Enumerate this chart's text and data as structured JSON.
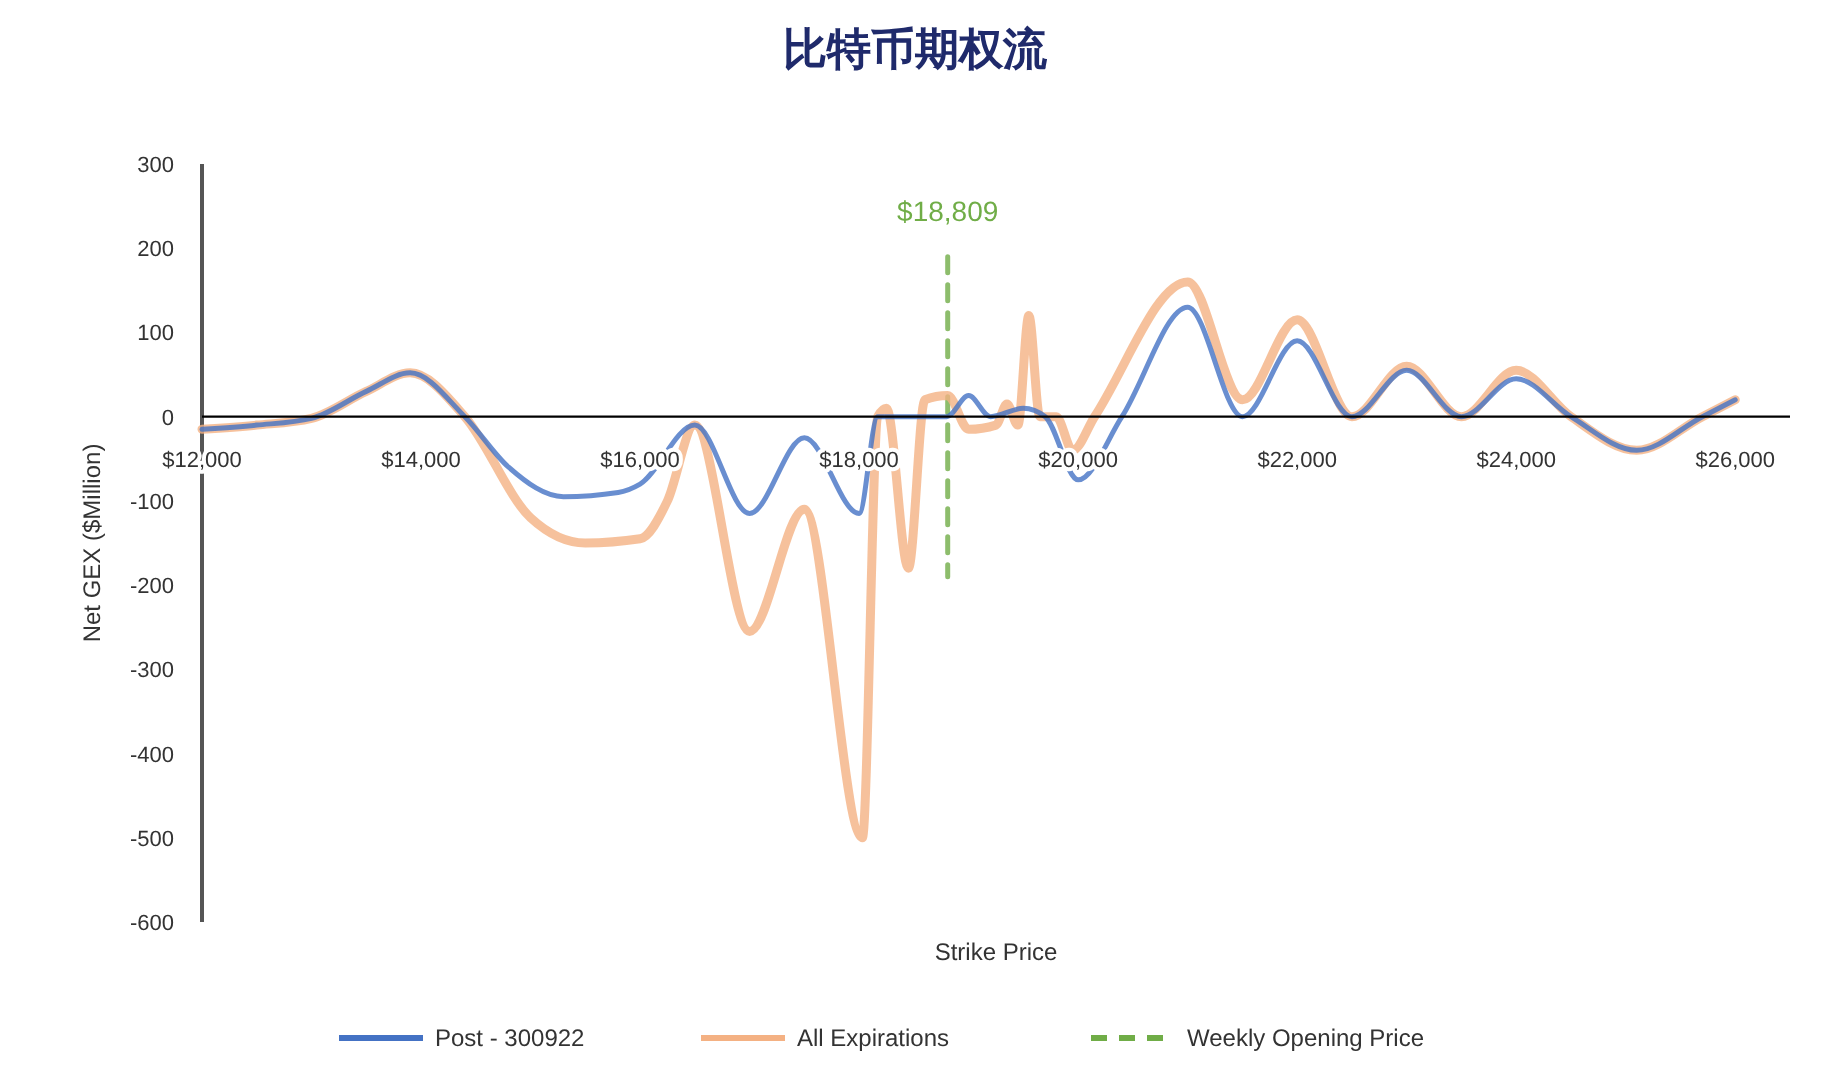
{
  "chart_data": {
    "type": "line",
    "title": "比特币期权流",
    "xlabel": "Strike Price",
    "ylabel": "Net GEX ($Million)",
    "xlim": [
      12000,
      26500
    ],
    "ylim": [
      -600,
      300
    ],
    "xticks": [
      {
        "value": 12000,
        "label": "$12,000"
      },
      {
        "value": 14000,
        "label": "$14,000"
      },
      {
        "value": 16000,
        "label": "$16,000"
      },
      {
        "value": 18000,
        "label": "$18,000"
      },
      {
        "value": 20000,
        "label": "$20,000"
      },
      {
        "value": 22000,
        "label": "$22,000"
      },
      {
        "value": 24000,
        "label": "$24,000"
      },
      {
        "value": 26000,
        "label": "$26,000"
      }
    ],
    "yticks": [
      -600,
      -500,
      -400,
      -300,
      -200,
      -100,
      0,
      100,
      200,
      300
    ],
    "grid": false,
    "legend": "bottom",
    "marker": "none",
    "annotations": [
      "$18,809"
    ],
    "series": [
      {
        "name": "Post - 300922",
        "color": "#4472c4",
        "line_style": "solid",
        "x": [
          12000,
          12500,
          13000,
          13500,
          13900,
          14400,
          14800,
          15300,
          15800,
          16000,
          16500,
          17000,
          17500,
          18000,
          18170,
          18800,
          19000,
          19200,
          19500,
          19700,
          20000,
          20400,
          21000,
          21500,
          22000,
          22500,
          23000,
          23500,
          24000,
          24500,
          25100,
          25700,
          26000
        ],
        "values": [
          -15,
          -10,
          -2,
          30,
          52,
          0,
          -60,
          -95,
          -90,
          -80,
          -10,
          -115,
          -25,
          -115,
          0,
          0,
          25,
          0,
          10,
          0,
          -75,
          0,
          130,
          0,
          90,
          0,
          55,
          0,
          45,
          0,
          -40,
          0,
          20
        ]
      },
      {
        "name": "All Expirations",
        "color": "#f4b183",
        "line_style": "solid",
        "x": [
          12000,
          12500,
          13000,
          13500,
          13900,
          14400,
          15000,
          15500,
          16000,
          16250,
          16500,
          17000,
          17500,
          18030,
          18170,
          18250,
          18450,
          18600,
          18809,
          19000,
          19250,
          19350,
          19450,
          19550,
          19650,
          19800,
          19950,
          20150,
          21000,
          21500,
          22000,
          22500,
          23000,
          23500,
          24000,
          24500,
          25100,
          25700,
          26000
        ],
        "values": [
          -15,
          -10,
          -2,
          30,
          52,
          0,
          -120,
          -150,
          -145,
          -100,
          -10,
          -255,
          -110,
          -500,
          0,
          10,
          -180,
          20,
          25,
          -15,
          -10,
          15,
          -10,
          120,
          0,
          0,
          -40,
          0,
          160,
          20,
          115,
          0,
          60,
          0,
          55,
          0,
          -40,
          0,
          20
        ]
      },
      {
        "name": "Weekly Opening Price",
        "color": "#70ad47",
        "line_style": "dashed",
        "x": [
          18809,
          18809
        ],
        "values": [
          190,
          -190
        ]
      }
    ]
  }
}
